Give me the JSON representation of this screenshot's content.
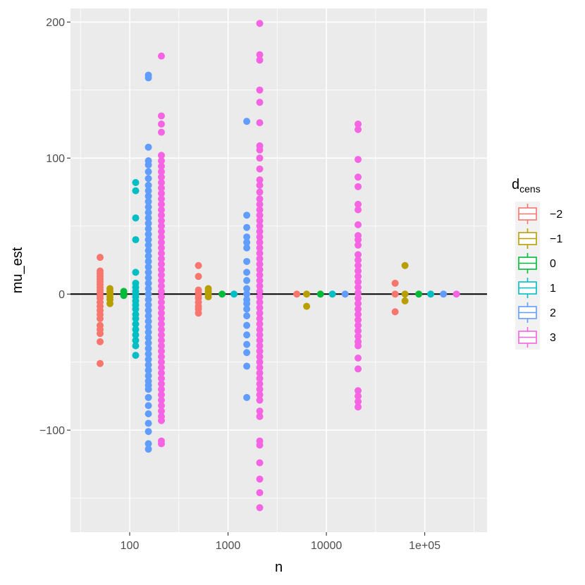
{
  "chart_data": {
    "type": "scatter",
    "xlabel": "n",
    "ylabel": "mu_est",
    "x_scale": "log10",
    "xlim": [
      25,
      430000
    ],
    "ylim": [
      -175,
      210
    ],
    "x_ticks": [
      100,
      1000,
      10000,
      100000
    ],
    "x_tick_labels": [
      "100",
      "1000",
      "10000",
      "1e+05"
    ],
    "y_ticks": [
      -100,
      0,
      100,
      200
    ],
    "y_tick_labels": [
      "−100",
      "0",
      "100",
      "200"
    ],
    "hline": 0,
    "grid": true,
    "legend": {
      "title_main": "d",
      "title_sub": "cens",
      "placement": "right",
      "entries": [
        "−2",
        "−1",
        "0",
        "1",
        "2",
        "3"
      ]
    },
    "colors": {
      "-2": "#F8766D",
      "-1": "#B79F00",
      "0": "#00BA38",
      "1": "#00BFC4",
      "2": "#619CFF",
      "3": "#F564E3",
      "panel": "#EBEBEB",
      "zero_line": "#000000"
    },
    "series": [
      {
        "name": "−2",
        "groups": [
          {
            "x": 50,
            "y": [
              27,
              17,
              15,
              13,
              11,
              9,
              7,
              5,
              3,
              1,
              -1,
              -3,
              -6,
              -9,
              -12,
              -15,
              -18,
              -23,
              -26,
              -29,
              -35,
              -51
            ]
          },
          {
            "x": 500,
            "y": [
              21,
              13,
              3,
              1,
              -1,
              -3,
              -6,
              -9,
              -11,
              -14
            ]
          },
          {
            "x": 5000,
            "y": [
              0
            ]
          },
          {
            "x": 50000,
            "y": [
              8,
              0,
              -13
            ]
          }
        ]
      },
      {
        "name": "−1",
        "groups": [
          {
            "x": 63,
            "y": [
              4,
              2,
              0,
              -2,
              -4,
              -7
            ]
          },
          {
            "x": 630,
            "y": [
              4,
              2,
              0,
              -2
            ]
          },
          {
            "x": 6300,
            "y": [
              0,
              -9
            ]
          },
          {
            "x": 63000,
            "y": [
              21,
              0,
              -5
            ]
          }
        ]
      },
      {
        "name": "0",
        "groups": [
          {
            "x": 87,
            "y": [
              2,
              0,
              -1
            ]
          },
          {
            "x": 870,
            "y": [
              0
            ]
          },
          {
            "x": 8700,
            "y": [
              0
            ]
          },
          {
            "x": 87000,
            "y": [
              0
            ]
          }
        ]
      },
      {
        "name": "1",
        "groups": [
          {
            "x": 115,
            "y": [
              82,
              76,
              56,
              40,
              16,
              8,
              5,
              2,
              0,
              -2,
              -5,
              -8,
              -11,
              -15,
              -18,
              -22,
              -26,
              -30,
              -34,
              -38,
              -45
            ]
          },
          {
            "x": 1150,
            "y": [
              0
            ]
          },
          {
            "x": 11500,
            "y": [
              0
            ]
          },
          {
            "x": 115000,
            "y": [
              0
            ]
          }
        ]
      },
      {
        "name": "2",
        "groups": [
          {
            "x": 155,
            "y": [
              161,
              159,
              108,
              98,
              95,
              90,
              85,
              80,
              76,
              72,
              68,
              64,
              60,
              56,
              52,
              48,
              44,
              40,
              36,
              32,
              28,
              24,
              20,
              16,
              12,
              8,
              4,
              0,
              -4,
              -8,
              -12,
              -16,
              -20,
              -24,
              -28,
              -32,
              -36,
              -40,
              -44,
              -48,
              -52,
              -56,
              -60,
              -64,
              -67,
              -70,
              -76,
              -82,
              -88,
              -95,
              -101,
              -110,
              -114
            ]
          },
          {
            "x": 1550,
            "y": [
              127,
              58,
              49,
              42,
              38,
              34,
              24,
              16,
              10,
              4,
              0,
              -4,
              -7,
              -11,
              -16,
              -23,
              -30,
              -37,
              -43,
              -53,
              -76
            ]
          },
          {
            "x": 15500,
            "y": [
              0
            ]
          },
          {
            "x": 155000,
            "y": [
              0
            ]
          }
        ]
      },
      {
        "name": "3",
        "groups": [
          {
            "x": 210,
            "y": [
              175,
              131,
              125,
              119,
              102,
              98,
              94,
              90,
              86,
              82,
              78,
              74,
              70,
              66,
              62,
              58,
              54,
              50,
              46,
              42,
              38,
              34,
              30,
              26,
              22,
              18,
              14,
              10,
              6,
              2,
              -2,
              -6,
              -10,
              -14,
              -18,
              -22,
              -26,
              -30,
              -34,
              -38,
              -42,
              -46,
              -50,
              -54,
              -58,
              -62,
              -66,
              -70,
              -74,
              -78,
              -82,
              -86,
              -90,
              -93,
              -108,
              -110
            ]
          },
          {
            "x": 2100,
            "y": [
              199,
              176,
              172,
              150,
              141,
              126,
              109,
              106,
              100,
              92,
              84,
              80,
              75,
              70,
              66,
              62,
              58,
              54,
              50,
              46,
              42,
              38,
              34,
              30,
              26,
              22,
              18,
              14,
              10,
              6,
              2,
              -2,
              -6,
              -10,
              -14,
              -18,
              -22,
              -26,
              -30,
              -34,
              -38,
              -42,
              -46,
              -50,
              -54,
              -58,
              -62,
              -66,
              -70,
              -74,
              -78,
              -86,
              -90,
              -108,
              -111,
              -124,
              -136,
              -146,
              -157
            ]
          },
          {
            "x": 21000,
            "y": [
              125,
              121,
              99,
              86,
              79,
              66,
              62,
              51,
              43,
              40,
              36,
              29,
              25,
              21,
              17,
              13,
              9,
              5,
              1,
              -3,
              -7,
              -11,
              -15,
              -19,
              -23,
              -27,
              -31,
              -35,
              -38,
              -47,
              -55,
              -71,
              -75,
              -79,
              -83
            ]
          },
          {
            "x": 210000,
            "y": [
              0
            ]
          }
        ]
      }
    ]
  }
}
